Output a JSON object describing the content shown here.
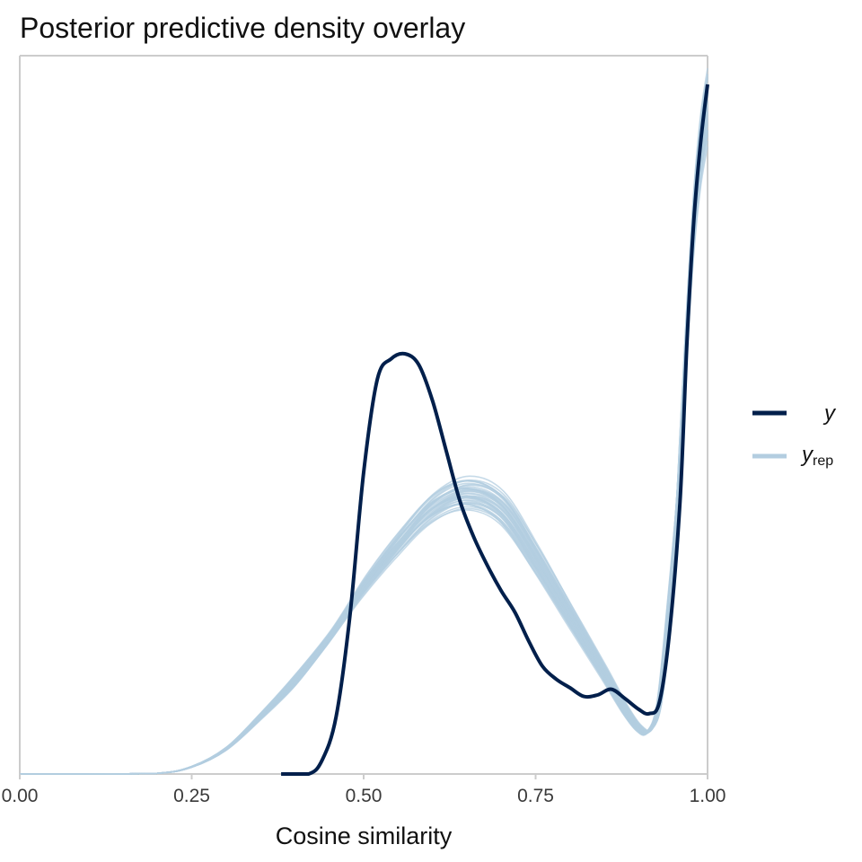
{
  "chart_data": {
    "type": "line",
    "title": "Posterior predictive density overlay",
    "xlabel": "Cosine similarity",
    "ylabel": "",
    "xlim": [
      0.0,
      1.0
    ],
    "ylim": [
      0,
      1.0
    ],
    "x_ticks": [
      "0.00",
      "0.25",
      "0.50",
      "0.75",
      "1.00"
    ],
    "x_tick_values": [
      0.0,
      0.25,
      0.5,
      0.75,
      1.0
    ],
    "y_ticks_shown": false,
    "grid": false,
    "legend_position": "right",
    "colors": {
      "y": "#011f4b",
      "yrep": "#b3cde0",
      "axis": "#cccccc"
    },
    "legend": [
      {
        "key": "y",
        "label": "y",
        "subscript": ""
      },
      {
        "key": "yrep",
        "label": "y",
        "subscript": "rep"
      }
    ],
    "yrep_draws": 40,
    "series": [
      {
        "name": "y",
        "x": [
          0.38,
          0.42,
          0.44,
          0.46,
          0.48,
          0.5,
          0.52,
          0.54,
          0.56,
          0.58,
          0.6,
          0.62,
          0.64,
          0.66,
          0.68,
          0.7,
          0.72,
          0.74,
          0.76,
          0.78,
          0.8,
          0.82,
          0.84,
          0.86,
          0.88,
          0.9,
          0.915,
          0.93,
          0.945,
          0.96,
          0.97,
          0.98,
          0.99,
          1.0
        ],
        "values": [
          0.0,
          0.0,
          0.02,
          0.08,
          0.22,
          0.42,
          0.55,
          0.578,
          0.585,
          0.57,
          0.52,
          0.45,
          0.38,
          0.33,
          0.29,
          0.255,
          0.225,
          0.185,
          0.15,
          0.132,
          0.12,
          0.108,
          0.11,
          0.118,
          0.105,
          0.09,
          0.084,
          0.1,
          0.2,
          0.38,
          0.6,
          0.77,
          0.88,
          0.96
        ]
      },
      {
        "name": "y_rep",
        "x": [
          0.0,
          0.1,
          0.2,
          0.25,
          0.3,
          0.35,
          0.4,
          0.45,
          0.5,
          0.55,
          0.6,
          0.65,
          0.7,
          0.75,
          0.8,
          0.85,
          0.88,
          0.9,
          0.915,
          0.93,
          0.945,
          0.96,
          0.97,
          0.98,
          0.99,
          1.0
        ],
        "values": [
          0.0,
          0.0,
          0.001,
          0.01,
          0.035,
          0.08,
          0.13,
          0.19,
          0.26,
          0.32,
          0.37,
          0.39,
          0.37,
          0.3,
          0.22,
          0.14,
          0.09,
          0.064,
          0.06,
          0.1,
          0.24,
          0.45,
          0.62,
          0.77,
          0.87,
          0.93
        ]
      }
    ]
  }
}
